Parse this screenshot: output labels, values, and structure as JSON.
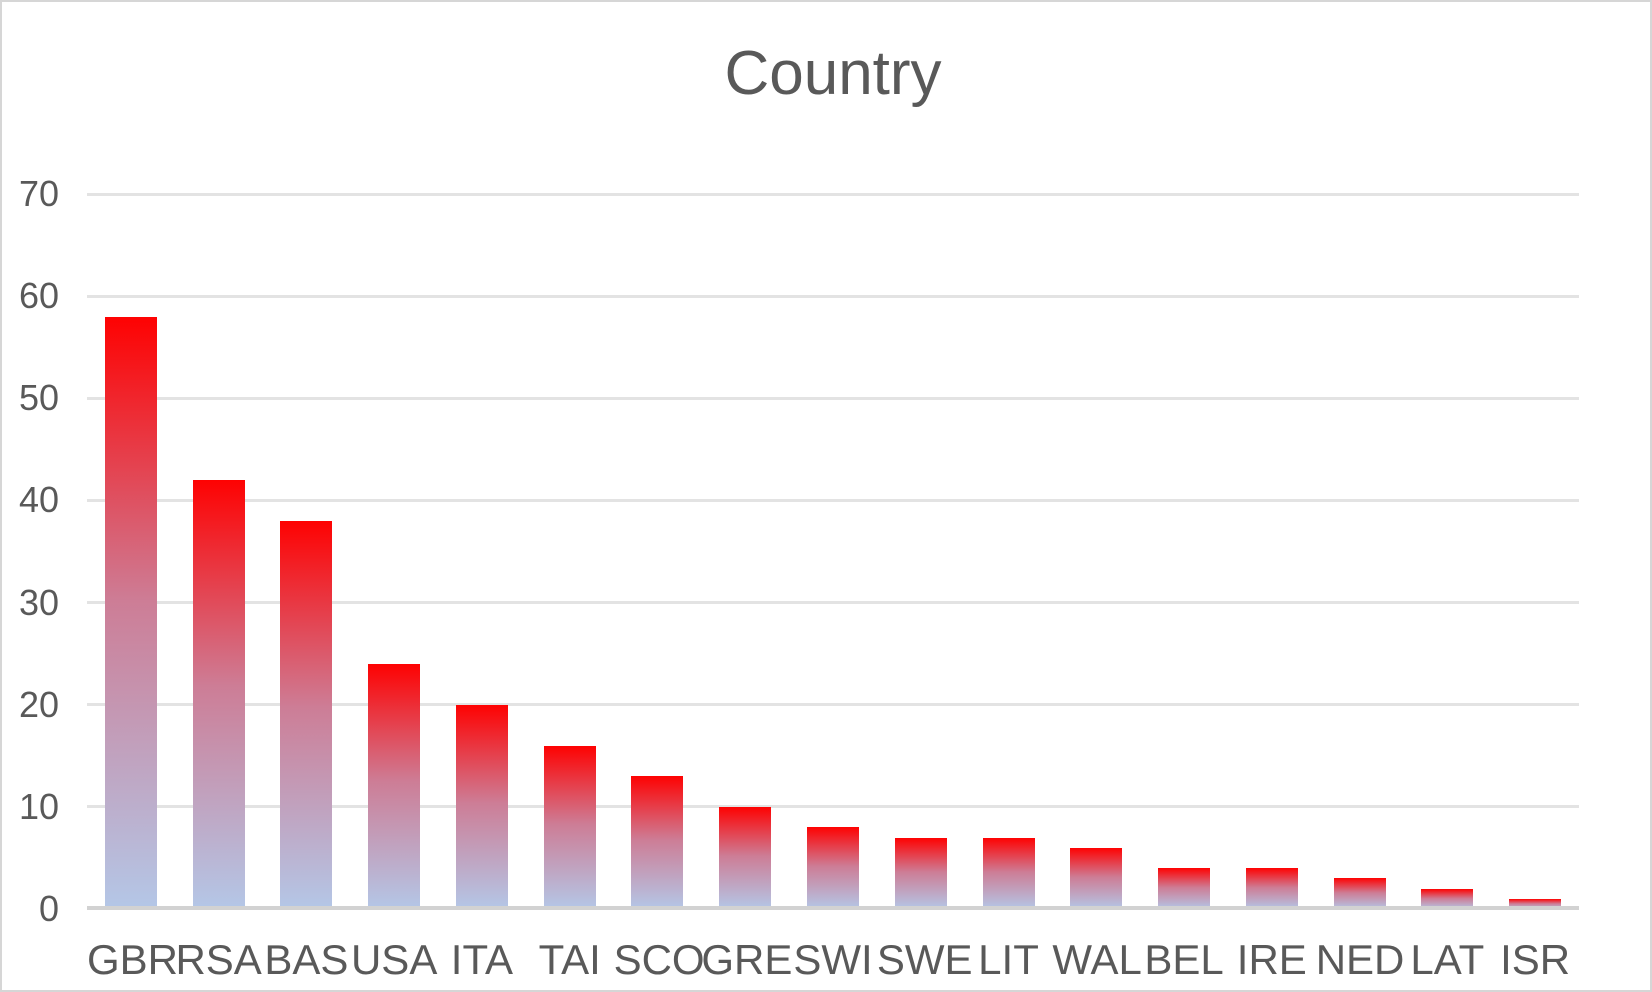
{
  "chart_data": {
    "type": "bar",
    "title": "Country",
    "categories": [
      "GBR",
      "RSA",
      "BAS",
      "USA",
      "ITA",
      "TAI",
      "SCO",
      "GRE",
      "SWI",
      "SWE",
      "LIT",
      "WAL",
      "BEL",
      "IRE",
      "NED",
      "LAT",
      "ISR"
    ],
    "values": [
      58,
      42,
      38,
      24,
      20,
      16,
      13,
      10,
      8,
      7,
      7,
      6,
      4,
      4,
      3,
      2,
      1
    ],
    "xlabel": "",
    "ylabel": "",
    "ylim": [
      0,
      70
    ],
    "yticks": [
      0,
      10,
      20,
      30,
      40,
      50,
      60,
      70
    ],
    "grid": true,
    "legend": false,
    "colors": {
      "bar_gradient_top": "#fe0202",
      "bar_gradient_mid": "#cd7d96",
      "bar_gradient_bottom": "#b4c7e7",
      "gridline": "#e3e3e3",
      "axis_line": "#d2d2d2",
      "text": "#595959",
      "frame_border": "#d6d6d6",
      "background": "#ffffff"
    }
  }
}
